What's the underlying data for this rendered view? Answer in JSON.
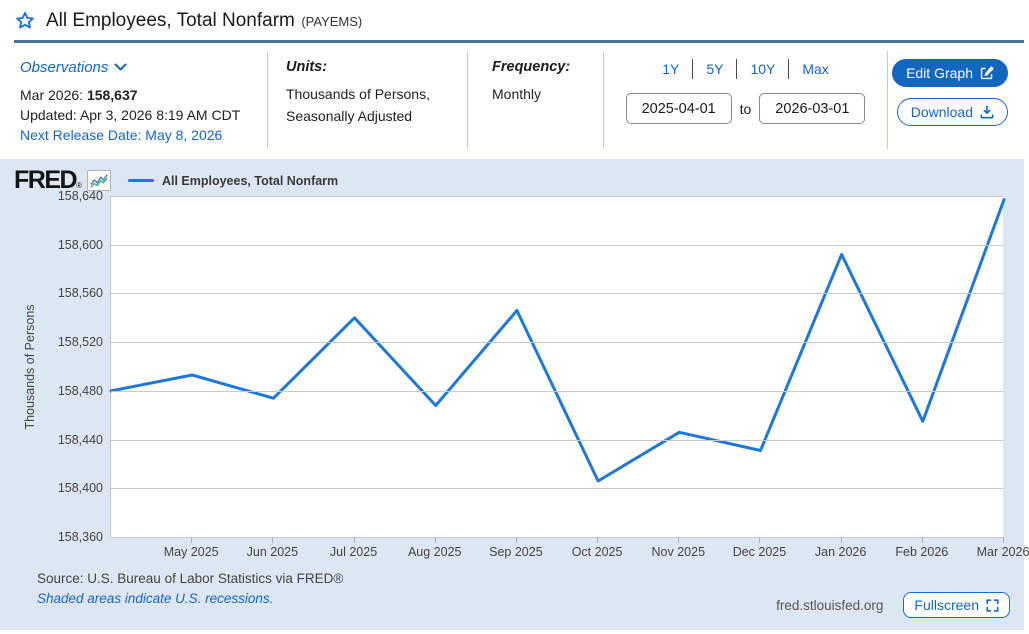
{
  "page": {
    "title": "All Employees, Total Nonfarm",
    "code": "(PAYEMS)"
  },
  "observations": {
    "label": "Observations",
    "latest_period": "Mar 2026:",
    "latest_value": "158,637",
    "updated": "Updated: Apr 3, 2026 8:19 AM CDT",
    "next_release": "Next Release Date: May 8, 2026"
  },
  "units": {
    "label": "Units:",
    "line1": "Thousands of Persons,",
    "line2": "Seasonally Adjusted"
  },
  "frequency": {
    "label": "Frequency:",
    "value": "Monthly"
  },
  "range": {
    "presets": [
      "1Y",
      "5Y",
      "10Y",
      "Max"
    ],
    "start": "2025-04-01",
    "to_label": "to",
    "end": "2026-03-01"
  },
  "actions": {
    "edit_graph": "Edit Graph",
    "download": "Download"
  },
  "chart": {
    "logo": "FRED",
    "logo_reg": "®",
    "legend": "All Employees, Total Nonfarm",
    "source": "Source: U.S. Bureau of Labor Statistics via FRED®",
    "recession_note": "Shaded areas indicate U.S. recessions.",
    "site": "fred.stlouisfed.org",
    "fullscreen": "Fullscreen"
  },
  "colors": {
    "line": "#1e78dc",
    "link": "#1666c1",
    "button": "#1266be",
    "chart_bg": "#dde7f3",
    "title_rule": "#4f7297"
  },
  "chart_data": {
    "type": "line",
    "title": "All Employees, Total Nonfarm",
    "x": [
      "Apr 2025",
      "May 2025",
      "Jun 2025",
      "Jul 2025",
      "Aug 2025",
      "Sep 2025",
      "Oct 2025",
      "Nov 2025",
      "Dec 2025",
      "Jan 2026",
      "Feb 2026",
      "Mar 2026"
    ],
    "x_tick_labels": [
      "May 2025",
      "Jun 2025",
      "Jul 2025",
      "Aug 2025",
      "Sep 2025",
      "Oct 2025",
      "Nov 2025",
      "Dec 2025",
      "Jan 2026",
      "Feb 2026",
      "Mar 2026"
    ],
    "values": [
      158480,
      158493,
      158474,
      158540,
      158468,
      158546,
      158406,
      158446,
      158431,
      158592,
      158455,
      158637
    ],
    "ylabel": "Thousands of Persons",
    "xlabel": "",
    "ylim": [
      158360,
      158640
    ],
    "yticks": [
      158640,
      158600,
      158560,
      158520,
      158480,
      158440,
      158400,
      158360
    ],
    "grid": true,
    "legend_position": "top-left",
    "line_color": "#1e78dc"
  }
}
